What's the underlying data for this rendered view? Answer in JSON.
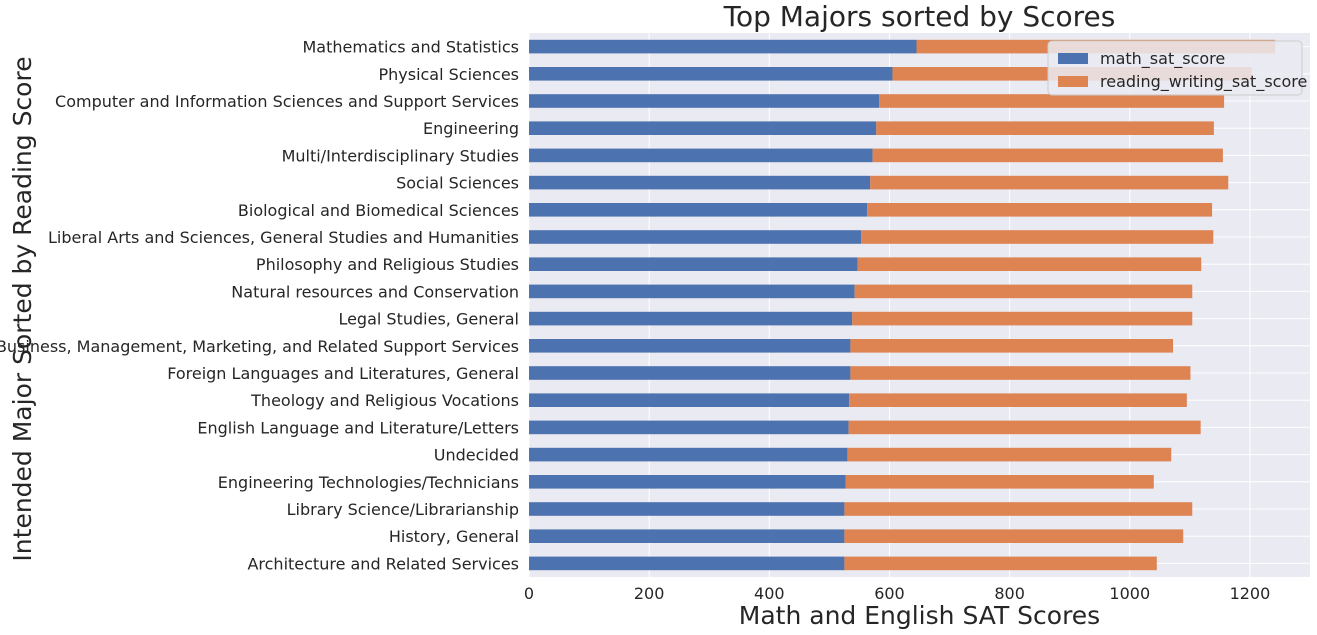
{
  "chart_data": {
    "type": "bar",
    "orientation": "horizontal",
    "stacked": true,
    "title": "Top Majors sorted by Scores",
    "xlabel": "Math and English SAT Scores",
    "ylabel": "Intended Major Sorted by Reading Score",
    "xlim": [
      0,
      1300
    ],
    "xticks": [
      0,
      200,
      400,
      600,
      800,
      1000,
      1200
    ],
    "grid": true,
    "legend_position": "top-right",
    "categories": [
      "Mathematics and Statistics",
      "Physical Sciences",
      "Computer and Information Sciences and Support Services",
      "Engineering",
      "Multi/Interdisciplinary Studies",
      "Social Sciences",
      "Biological and Biomedical Sciences",
      "Liberal Arts and Sciences, General Studies and Humanities",
      "Philosophy and Religious Studies",
      "Natural resources and Conservation",
      "Legal Studies, General",
      "Business, Management, Marketing, and Related Support Services",
      "Foreign Languages and Literatures, General",
      "Theology and Religious Vocations",
      "English Language and Literature/Letters",
      "Undecided",
      "Engineering Technologies/Technicians",
      "Library Science/Librarianship",
      "History, General",
      "Architecture and Related Services"
    ],
    "series": [
      {
        "name": "math_sat_score",
        "color": "#4c72b0",
        "values": [
          645,
          605,
          583,
          578,
          572,
          568,
          563,
          553,
          547,
          542,
          538,
          535,
          535,
          533,
          532,
          530,
          527,
          525,
          525,
          525
        ]
      },
      {
        "name": "reading_writing_sat_score",
        "color": "#dd8452",
        "values": [
          597,
          598,
          574,
          562,
          583,
          596,
          574,
          586,
          572,
          562,
          566,
          537,
          566,
          562,
          586,
          539,
          513,
          579,
          564,
          520
        ]
      }
    ],
    "background_color": "#eaeaf2",
    "grid_color": "#ffffff"
  }
}
